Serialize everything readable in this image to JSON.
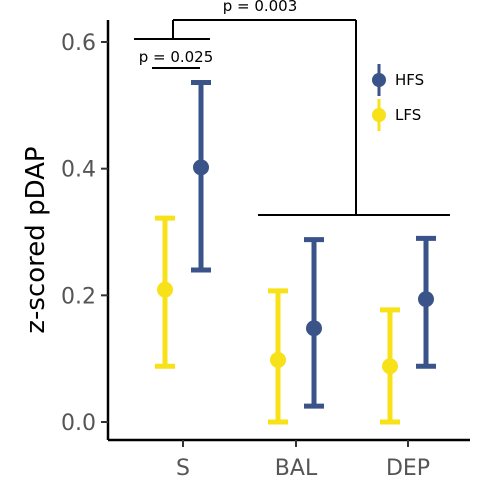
{
  "chart_data": {
    "type": "errorbar",
    "ylabel": "z-scored pDAP",
    "xlabel": "",
    "categories": [
      "S",
      "BAL",
      "DEP"
    ],
    "ylim": [
      0.0,
      0.6
    ],
    "yticks": [
      "0.0",
      "0.2",
      "0.4",
      "0.6"
    ],
    "grid": false,
    "legend_position": "top-right",
    "series": [
      {
        "name": "HFS",
        "color": "#3a5388",
        "values": [
          0.402,
          0.148,
          0.194
        ],
        "lower": [
          0.24,
          0.025,
          0.088
        ],
        "upper": [
          0.536,
          0.288,
          0.29
        ]
      },
      {
        "name": "LFS",
        "color": "#f7e118",
        "values": [
          0.209,
          0.098,
          0.088
        ],
        "lower": [
          0.088,
          0.0,
          0.0
        ],
        "upper": [
          0.322,
          0.207,
          0.177
        ]
      }
    ],
    "annotations": [
      {
        "text": "p = 0.025"
      },
      {
        "text": "p = 0.003"
      }
    ]
  }
}
